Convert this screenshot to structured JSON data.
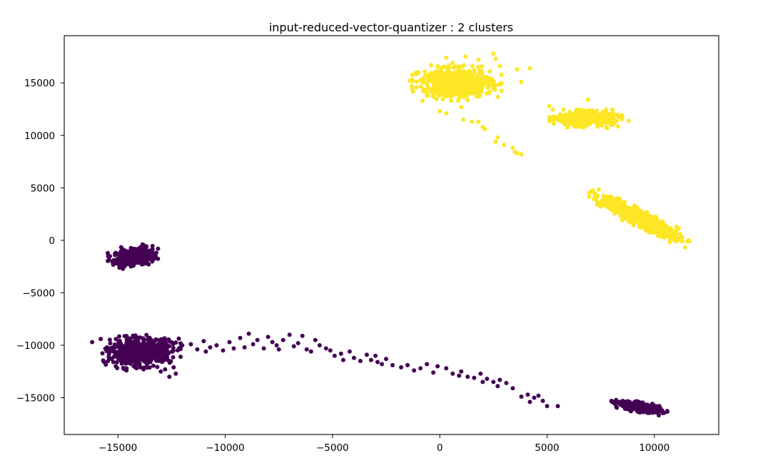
{
  "chart_data": {
    "type": "scatter",
    "title": "input-reduced-vector-quantizer : 2 clusters",
    "xlabel": "",
    "ylabel": "",
    "xlim": [
      -17500,
      13000
    ],
    "ylim": [
      -18500,
      19500
    ],
    "x_ticks": [
      {
        "value": -15000,
        "label": "−15000"
      },
      {
        "value": -10000,
        "label": "−10000"
      },
      {
        "value": -5000,
        "label": "−5000"
      },
      {
        "value": 0,
        "label": "0"
      },
      {
        "value": 5000,
        "label": "5000"
      },
      {
        "value": 10000,
        "label": "10000"
      }
    ],
    "y_ticks": [
      {
        "value": 15000,
        "label": "15000"
      },
      {
        "value": 10000,
        "label": "10000"
      },
      {
        "value": 5000,
        "label": "5000"
      },
      {
        "value": 0,
        "label": "0"
      },
      {
        "value": -5000,
        "label": "−5000"
      },
      {
        "value": -10000,
        "label": "−10000"
      },
      {
        "value": -15000,
        "label": "−15000"
      }
    ],
    "grid": false,
    "legend": "none",
    "colors": {
      "cluster_0": "#440154",
      "cluster_1": "#fde725"
    },
    "series": [
      {
        "cluster": 0,
        "color": "#440154",
        "groups": [
          {
            "kind": "blob",
            "center": [
              -14300,
              -1600
            ],
            "spread": [
              450,
              420
            ],
            "tilt": 0.12,
            "count": 380
          },
          {
            "kind": "blob",
            "center": [
              -13900,
              -10600
            ],
            "spread": [
              700,
              600
            ],
            "tilt": 0.05,
            "count": 650
          },
          {
            "kind": "blob",
            "center": [
              9300,
              -15900
            ],
            "spread": [
              500,
              200
            ],
            "tilt": -0.15,
            "count": 380
          }
        ],
        "points": [
          [
            -16200,
            -9700
          ],
          [
            -15800,
            -9400
          ],
          [
            -15500,
            -10200
          ],
          [
            -15300,
            -11300
          ],
          [
            -15100,
            -12000
          ],
          [
            -14600,
            -12400
          ],
          [
            -13800,
            -12300
          ],
          [
            -12800,
            -12300
          ],
          [
            -12400,
            -12100
          ],
          [
            -12300,
            -12700
          ],
          [
            -12600,
            -13000
          ],
          [
            -13000,
            -12500
          ],
          [
            -12000,
            -10000
          ],
          [
            -11600,
            -9900
          ],
          [
            -11300,
            -10400
          ],
          [
            -11000,
            -9600
          ],
          [
            -10900,
            -10600
          ],
          [
            -10700,
            -10200
          ],
          [
            -10400,
            -10000
          ],
          [
            -10100,
            -10500
          ],
          [
            -9800,
            -9700
          ],
          [
            -9600,
            -10300
          ],
          [
            -9300,
            -9300
          ],
          [
            -9100,
            -10200
          ],
          [
            -8900,
            -8900
          ],
          [
            -8700,
            -9900
          ],
          [
            -8500,
            -9500
          ],
          [
            -8200,
            -10300
          ],
          [
            -8000,
            -9200
          ],
          [
            -7800,
            -9700
          ],
          [
            -7500,
            -10400
          ],
          [
            -7300,
            -9500
          ],
          [
            -7000,
            -9000
          ],
          [
            -6800,
            -10100
          ],
          [
            -6600,
            -9800
          ],
          [
            -6400,
            -9100
          ],
          [
            -6200,
            -10400
          ],
          [
            -6000,
            -10600
          ],
          [
            -5800,
            -9500
          ],
          [
            -5600,
            -10000
          ],
          [
            -5300,
            -10300
          ],
          [
            -5100,
            -10500
          ],
          [
            -4900,
            -11000
          ],
          [
            -4600,
            -10800
          ],
          [
            -4500,
            -11400
          ],
          [
            -4200,
            -10600
          ],
          [
            -4000,
            -11200
          ],
          [
            -3700,
            -11500
          ],
          [
            -3400,
            -10900
          ],
          [
            -3200,
            -11400
          ],
          [
            -2900,
            -11600
          ],
          [
            -2700,
            -11800
          ],
          [
            -2500,
            -11300
          ],
          [
            -2200,
            -11900
          ],
          [
            -1800,
            -12100
          ],
          [
            -1500,
            -11900
          ],
          [
            -1200,
            -12400
          ],
          [
            -900,
            -12200
          ],
          [
            -600,
            -11800
          ],
          [
            -300,
            -12600
          ],
          [
            300,
            -12200
          ],
          [
            600,
            -12700
          ],
          [
            900,
            -12900
          ],
          [
            1300,
            -13000
          ],
          [
            1600,
            -13100
          ],
          [
            1900,
            -12700
          ],
          [
            2200,
            -13200
          ],
          [
            2500,
            -13500
          ],
          [
            2800,
            -13300
          ],
          [
            3100,
            -13600
          ],
          [
            3400,
            -14100
          ],
          [
            3800,
            -14900
          ],
          [
            4100,
            -14700
          ],
          [
            4200,
            -15400
          ],
          [
            4400,
            -15000
          ],
          [
            4600,
            -14800
          ],
          [
            4800,
            -15300
          ],
          [
            5000,
            -15800
          ],
          [
            5500,
            -15800
          ],
          [
            2700,
            -13900
          ],
          [
            2000,
            -13500
          ],
          [
            1000,
            -12500
          ],
          [
            -100,
            -12000
          ],
          [
            -3000,
            -11000
          ],
          [
            -7600,
            -10000
          ]
        ]
      },
      {
        "cluster": 1,
        "color": "#fde725",
        "groups": [
          {
            "kind": "blob",
            "center": [
              800,
              15000
            ],
            "spread": [
              800,
              650
            ],
            "tilt": 0.0,
            "count": 700
          },
          {
            "kind": "blob",
            "center": [
              6800,
              11600
            ],
            "spread": [
              650,
              330
            ],
            "tilt": 0.0,
            "count": 400
          },
          {
            "kind": "blob",
            "center": [
              9300,
              2100
            ],
            "spread": [
              900,
              380
            ],
            "tilt": -0.45,
            "count": 620
          }
        ],
        "points": [
          [
            -1400,
            15200
          ],
          [
            -1100,
            16000
          ],
          [
            -1300,
            14700
          ],
          [
            -800,
            13300
          ],
          [
            0,
            12300
          ],
          [
            300,
            12100
          ],
          [
            1000,
            12700
          ],
          [
            1100,
            11500
          ],
          [
            1500,
            11300
          ],
          [
            1800,
            11300
          ],
          [
            2000,
            10800
          ],
          [
            2100,
            10600
          ],
          [
            2700,
            9800
          ],
          [
            2600,
            9400
          ],
          [
            3000,
            9100
          ],
          [
            3400,
            8800
          ],
          [
            3600,
            8300
          ],
          [
            3800,
            8200
          ],
          [
            3500,
            8400
          ],
          [
            2800,
            16600
          ],
          [
            2600,
            17300
          ],
          [
            2500,
            17800
          ],
          [
            3600,
            16300
          ],
          [
            3800,
            15100
          ],
          [
            4200,
            16400
          ],
          [
            1800,
            17200
          ],
          [
            1200,
            17500
          ],
          [
            300,
            17400
          ],
          [
            600,
            16900
          ],
          [
            -400,
            16700
          ],
          [
            5100,
            12800
          ],
          [
            5300,
            11300
          ],
          [
            7800,
            10700
          ],
          [
            8500,
            11800
          ],
          [
            8800,
            11400
          ],
          [
            6900,
            13400
          ],
          [
            7500,
            3200
          ],
          [
            7700,
            3500
          ],
          [
            8000,
            4100
          ],
          [
            10900,
            400
          ],
          [
            11200,
            600
          ],
          [
            11600,
            0
          ],
          [
            10500,
            1100
          ]
        ]
      }
    ]
  }
}
